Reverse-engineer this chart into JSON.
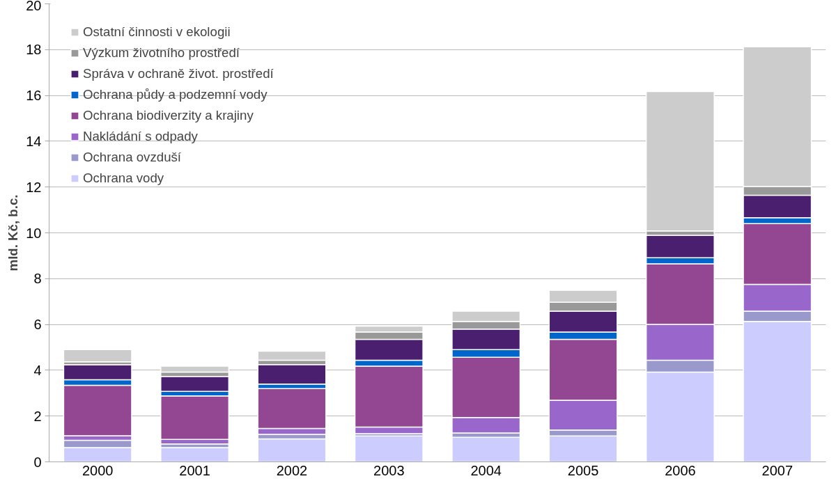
{
  "chart_data": {
    "type": "bar",
    "stacked": true,
    "ylabel": "mld. Kč, b.c.",
    "categories": [
      "2000",
      "2001",
      "2002",
      "2003",
      "2004",
      "2005",
      "2006",
      "2007"
    ],
    "ylim": [
      0,
      20
    ],
    "yticks": [
      0,
      2,
      4,
      6,
      8,
      10,
      12,
      14,
      16,
      18,
      20
    ],
    "grid": "y",
    "legend": "top left",
    "series": [
      {
        "name": "Ochrana vody",
        "color": "#ccccff",
        "values": [
          0.62,
          0.62,
          1.0,
          1.13,
          1.07,
          1.13,
          3.92,
          6.13
        ]
      },
      {
        "name": "Ochrana ovzduší",
        "color": "#9999cc",
        "values": [
          0.32,
          0.16,
          0.2,
          0.1,
          0.19,
          0.26,
          0.52,
          0.45
        ]
      },
      {
        "name": "Nakládání s odpady",
        "color": "#9966cc",
        "values": [
          0.2,
          0.2,
          0.26,
          0.29,
          0.68,
          1.3,
          1.56,
          1.17
        ]
      },
      {
        "name": "Ochrana biodiverzity a krajiny",
        "color": "#934793",
        "values": [
          2.2,
          1.9,
          1.74,
          2.66,
          2.63,
          2.66,
          2.65,
          2.65
        ]
      },
      {
        "name": "Ochrana půdy a podzemní vody",
        "color": "#0066cc",
        "values": [
          0.25,
          0.2,
          0.2,
          0.26,
          0.33,
          0.32,
          0.26,
          0.26
        ]
      },
      {
        "name": "Správa v ochraně život. prostředí",
        "color": "#4b1f6f",
        "values": [
          0.65,
          0.65,
          0.85,
          0.91,
          0.9,
          0.91,
          0.98,
          0.98
        ]
      },
      {
        "name": "Výzkum životního prostředí",
        "color": "#999999",
        "values": [
          0.13,
          0.19,
          0.19,
          0.32,
          0.33,
          0.39,
          0.19,
          0.39
        ]
      },
      {
        "name": "Ostatní činnosti v ekologii",
        "color": "#cccccc",
        "values": [
          0.53,
          0.26,
          0.39,
          0.26,
          0.45,
          0.52,
          6.09,
          6.09
        ]
      }
    ]
  }
}
